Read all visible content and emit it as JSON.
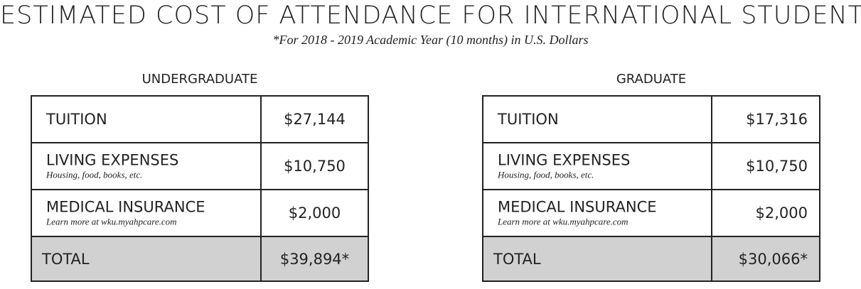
{
  "title": "ESTIMATED COST OF ATTENDANCE FOR INTERNATIONAL STUDENTS",
  "subtitle": "*For 2018 - 2019 Academic Year (10 months) in U.S. Dollars",
  "tables": [
    {
      "heading": "UNDERGRADUATE",
      "rows": [
        {
          "label": "TUITION",
          "amount": "$27,144"
        },
        {
          "label": "LIVING EXPENSES",
          "note": "Housing, food, books, etc.",
          "amount": "$10,750"
        },
        {
          "label": "MEDICAL INSURANCE",
          "note": "Learn more at wku.myahpcare.com",
          "amount": "$2,000"
        },
        {
          "label": "TOTAL",
          "amount": "$39,894*"
        }
      ]
    },
    {
      "heading": "GRADUATE",
      "rows": [
        {
          "label": "TUITION",
          "amount": "$17,316"
        },
        {
          "label": "LIVING EXPENSES",
          "note": "Housing, food, books, etc.",
          "amount": "$10,750"
        },
        {
          "label": "MEDICAL INSURANCE",
          "note": "Learn more at wku.myahpcare.com",
          "amount": "$2,000"
        },
        {
          "label": "TOTAL",
          "amount": "$30,066*"
        }
      ]
    }
  ]
}
